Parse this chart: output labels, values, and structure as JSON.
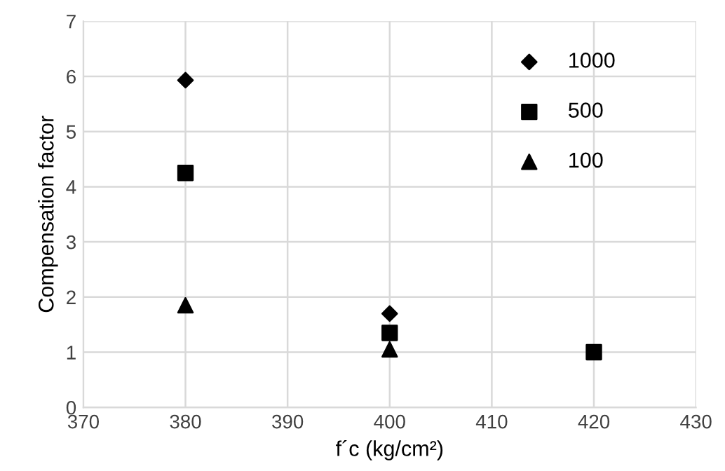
{
  "chart_data": {
    "type": "scatter",
    "xlabel": "f´c (kg/cm²)",
    "ylabel": "Compensation factor",
    "xlim": [
      370,
      430
    ],
    "xticks": [
      370,
      380,
      390,
      400,
      410,
      420,
      430
    ],
    "ylim": [
      0,
      7
    ],
    "yticks": [
      0,
      1,
      2,
      3,
      4,
      5,
      6,
      7
    ],
    "grid": true,
    "legend": "top right",
    "series": [
      {
        "name": "1000",
        "color": "#000000",
        "marker": "diamond",
        "x": [
          380,
          400
        ],
        "values": [
          5.93,
          1.7
        ]
      },
      {
        "name": "500",
        "color": "#000000",
        "marker": "square",
        "x": [
          380,
          400,
          420
        ],
        "values": [
          4.25,
          1.35,
          1.0
        ]
      },
      {
        "name": "100",
        "color": "#000000",
        "marker": "triangle",
        "x": [
          380,
          400
        ],
        "values": [
          1.85,
          1.05
        ]
      }
    ]
  }
}
